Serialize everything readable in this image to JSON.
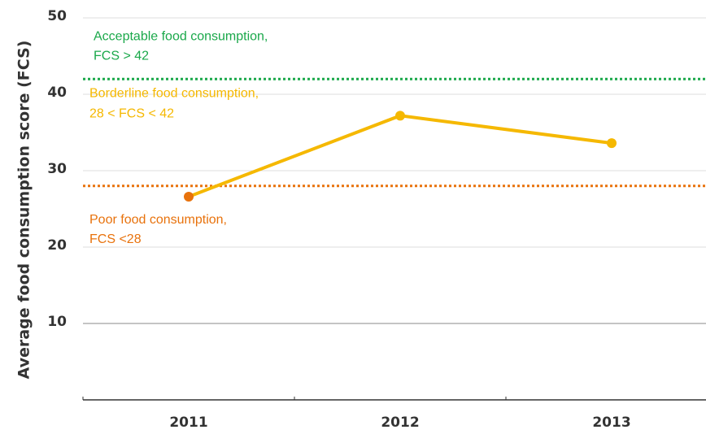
{
  "chart_data": {
    "type": "line",
    "y_label": "Average food consumption score (FCS)",
    "categories": [
      "2011",
      "2012",
      "2013"
    ],
    "series": [
      {
        "color": "#f5b800",
        "marker_colors": [
          "#e8720c",
          "#f5b800",
          "#f5b800"
        ],
        "values": [
          26.6,
          37.2,
          33.6
        ]
      }
    ],
    "ylim": [
      0,
      50
    ],
    "yticks": [
      10,
      20,
      30,
      40,
      50
    ],
    "grid": true,
    "reference_lines": [
      {
        "value": 42,
        "color": "#1aa84a",
        "label": [
          "Acceptable food consumption,",
          "FCS > 42"
        ]
      },
      {
        "value": 28,
        "color": "#e8720c",
        "label": [
          "Poor food consumption,",
          "FCS <28"
        ]
      }
    ],
    "annotations": [
      {
        "color": "#f5b800",
        "value": 40.5,
        "label": [
          "Borderline food consumption,",
          "28 < FCS < 42"
        ]
      }
    ]
  }
}
